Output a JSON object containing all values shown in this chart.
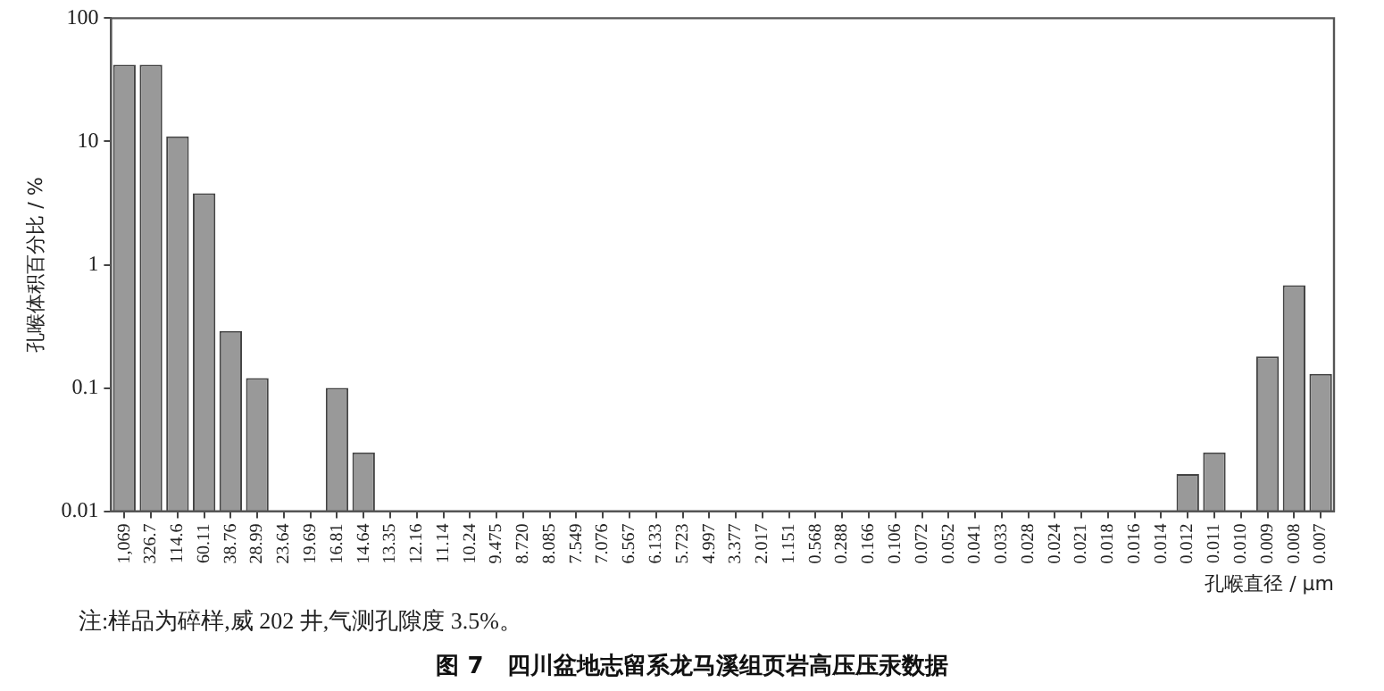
{
  "chart_data": {
    "type": "bar",
    "title": "图 7　四川盆地志留系龙马溪组页岩高压压汞数据",
    "xlabel": "孔喉直径 / μm",
    "ylabel": "孔喉体积百分比 / %",
    "categories": [
      "1,069",
      "326.7",
      "114.6",
      "60.11",
      "38.76",
      "28.99",
      "23.64",
      "19.69",
      "16.81",
      "14.64",
      "13.35",
      "12.16",
      "11.14",
      "10.24",
      "9.475",
      "8.720",
      "8.085",
      "7.549",
      "7.076",
      "6.567",
      "6.133",
      "5.723",
      "4.997",
      "3.377",
      "2.017",
      "1.151",
      "0.568",
      "0.288",
      "0.166",
      "0.106",
      "0.072",
      "0.052",
      "0.041",
      "0.033",
      "0.028",
      "0.024",
      "0.021",
      "0.018",
      "0.016",
      "0.014",
      "0.012",
      "0.011",
      "0.010",
      "0.009",
      "0.008",
      "0.007"
    ],
    "values": [
      42,
      42,
      11,
      3.8,
      0.29,
      0.12,
      null,
      null,
      0.1,
      0.03,
      null,
      null,
      null,
      null,
      null,
      null,
      null,
      null,
      null,
      null,
      null,
      null,
      null,
      null,
      null,
      null,
      null,
      null,
      null,
      null,
      null,
      null,
      null,
      null,
      null,
      null,
      null,
      null,
      null,
      null,
      0.02,
      0.03,
      null,
      0.18,
      0.68,
      0.13
    ],
    "color": "#999999",
    "log": true,
    "ylim": [
      0.01,
      100
    ],
    "yticks": [
      0.01,
      0.1,
      1,
      10,
      100
    ],
    "grid": false,
    "legend": false,
    "annotations": [
      "注:样品为碎样,威 202 井,气测孔隙度 3.5%。"
    ]
  }
}
